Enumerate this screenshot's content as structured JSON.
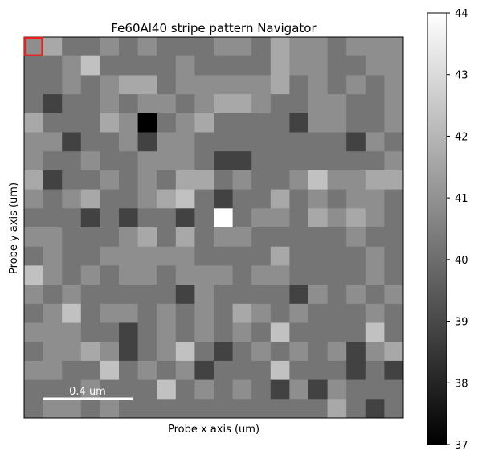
{
  "chart_data": {
    "type": "heatmap",
    "title": "Fe60Al40 stripe pattern Navigator",
    "xlabel": "Probe x axis (um)",
    "ylabel": "Probe y axis (um)",
    "rows": 20,
    "cols": 20,
    "values": [
      [
        40.9,
        41.6,
        40.2,
        40.2,
        40.9,
        40.2,
        40.9,
        40.2,
        40.2,
        40.2,
        40.9,
        40.9,
        40.2,
        41.6,
        40.9,
        40.9,
        40.2,
        40.9,
        40.9,
        40.9
      ],
      [
        40.2,
        40.2,
        40.9,
        42.3,
        40.2,
        40.2,
        40.2,
        40.2,
        40.9,
        40.2,
        40.2,
        40.2,
        40.2,
        41.6,
        40.9,
        40.9,
        40.2,
        40.2,
        40.9,
        40.9
      ],
      [
        40.2,
        40.2,
        40.9,
        40.2,
        40.9,
        41.6,
        41.6,
        40.2,
        40.9,
        40.9,
        40.9,
        40.9,
        40.9,
        41.6,
        40.2,
        40.9,
        40.2,
        40.9,
        40.2,
        40.9
      ],
      [
        40.2,
        38.8,
        40.2,
        40.2,
        40.9,
        40.2,
        40.9,
        40.9,
        40.2,
        40.9,
        41.6,
        41.6,
        40.9,
        40.2,
        40.2,
        40.9,
        40.9,
        40.2,
        40.2,
        40.9
      ],
      [
        41.6,
        40.2,
        40.2,
        40.2,
        41.6,
        40.9,
        37.0,
        40.2,
        40.9,
        41.6,
        40.2,
        40.2,
        40.2,
        40.2,
        38.8,
        40.9,
        40.9,
        40.2,
        40.2,
        40.9
      ],
      [
        40.9,
        40.9,
        38.8,
        40.2,
        40.2,
        40.9,
        38.8,
        40.9,
        40.9,
        40.2,
        40.2,
        40.2,
        40.2,
        40.2,
        40.2,
        40.2,
        40.2,
        38.8,
        40.9,
        40.2
      ],
      [
        40.9,
        40.2,
        40.2,
        40.9,
        40.2,
        40.2,
        40.9,
        40.9,
        40.9,
        40.2,
        38.8,
        38.8,
        40.2,
        40.2,
        40.2,
        40.2,
        40.2,
        40.2,
        40.2,
        40.9
      ],
      [
        41.6,
        38.8,
        40.2,
        40.2,
        40.9,
        40.2,
        40.9,
        40.2,
        41.6,
        41.6,
        40.2,
        40.9,
        40.2,
        40.2,
        40.9,
        42.3,
        40.9,
        40.9,
        41.6,
        41.6
      ],
      [
        40.9,
        40.2,
        40.9,
        41.6,
        40.2,
        40.2,
        40.9,
        41.6,
        42.3,
        40.2,
        38.8,
        40.2,
        40.2,
        41.6,
        40.2,
        40.9,
        40.2,
        40.9,
        40.9,
        40.2
      ],
      [
        40.2,
        40.2,
        40.2,
        38.8,
        40.2,
        38.8,
        40.2,
        40.2,
        38.8,
        40.2,
        44.0,
        40.2,
        40.9,
        40.9,
        40.2,
        41.6,
        40.9,
        41.6,
        40.9,
        40.2
      ],
      [
        40.9,
        40.9,
        40.2,
        40.2,
        40.2,
        40.9,
        41.6,
        40.2,
        41.6,
        40.2,
        40.9,
        40.9,
        40.2,
        40.2,
        40.2,
        40.2,
        40.2,
        40.9,
        40.2,
        40.2
      ],
      [
        40.2,
        40.9,
        40.2,
        40.2,
        40.9,
        40.9,
        40.9,
        40.9,
        40.9,
        40.2,
        40.2,
        40.2,
        40.2,
        41.6,
        40.2,
        40.2,
        40.2,
        40.2,
        40.9,
        40.2
      ],
      [
        42.3,
        40.9,
        40.2,
        40.9,
        40.2,
        40.9,
        40.9,
        40.2,
        40.9,
        40.9,
        40.9,
        40.2,
        40.9,
        40.9,
        40.2,
        40.2,
        40.2,
        40.2,
        40.9,
        40.2
      ],
      [
        40.9,
        40.2,
        40.9,
        40.2,
        40.2,
        40.2,
        40.2,
        40.2,
        38.8,
        40.9,
        40.2,
        40.2,
        40.2,
        40.2,
        38.8,
        40.9,
        40.2,
        40.9,
        40.2,
        40.9
      ],
      [
        40.2,
        40.9,
        42.3,
        40.2,
        40.9,
        40.9,
        40.2,
        40.9,
        40.2,
        40.9,
        40.2,
        41.6,
        40.9,
        40.2,
        40.9,
        40.2,
        40.2,
        40.2,
        40.9,
        40.2
      ],
      [
        40.9,
        40.9,
        40.9,
        40.2,
        40.2,
        38.8,
        40.2,
        40.9,
        40.2,
        40.9,
        40.2,
        40.9,
        40.2,
        42.3,
        40.2,
        40.2,
        40.2,
        40.2,
        42.3,
        40.2
      ],
      [
        40.2,
        40.9,
        40.9,
        41.6,
        40.9,
        38.8,
        40.2,
        40.9,
        42.3,
        40.2,
        38.8,
        40.2,
        40.9,
        40.2,
        40.9,
        40.2,
        40.9,
        38.8,
        40.9,
        41.6
      ],
      [
        40.9,
        40.9,
        40.2,
        40.2,
        42.3,
        40.2,
        40.9,
        40.2,
        40.9,
        38.8,
        40.2,
        40.2,
        40.2,
        42.3,
        40.2,
        40.2,
        40.2,
        38.8,
        40.2,
        38.8
      ],
      [
        40.2,
        40.2,
        40.2,
        40.9,
        40.2,
        40.2,
        40.2,
        42.3,
        40.2,
        40.9,
        40.2,
        40.9,
        40.2,
        38.8,
        40.9,
        38.8,
        40.9,
        40.2,
        40.2,
        40.2
      ],
      [
        40.2,
        40.9,
        40.9,
        40.2,
        40.9,
        40.2,
        40.2,
        40.2,
        40.2,
        40.2,
        40.2,
        40.2,
        40.2,
        40.2,
        40.2,
        40.2,
        41.6,
        40.2,
        38.8,
        40.2
      ]
    ],
    "colormap": "gray",
    "colorbar": {
      "min": 37,
      "max": 44,
      "ticks": [
        37,
        38,
        39,
        40,
        41,
        42,
        43,
        44
      ]
    },
    "scalebar_label": "0.4 um",
    "highlight_cell": {
      "row": 0,
      "col": 0,
      "color": "#e8201c"
    },
    "axes_ticks_visible": false
  }
}
